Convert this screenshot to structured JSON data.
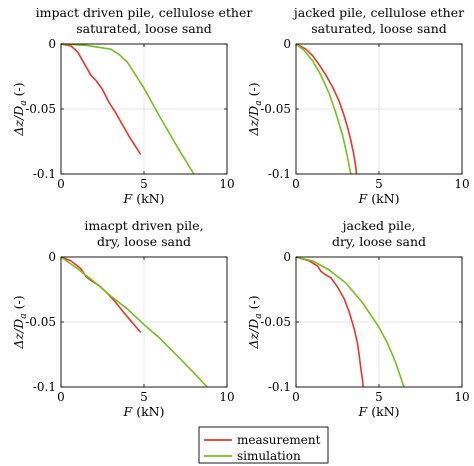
{
  "legend": {
    "entries": [
      {
        "label": "measurement",
        "color": "#e8352a"
      },
      {
        "label": "simulation",
        "color": "#72c21c"
      }
    ]
  },
  "chart_data": [
    {
      "type": "line",
      "title_lines": [
        "impact driven pile, cellulose ether",
        "saturated, loose sand"
      ],
      "xlabel": {
        "var": "F",
        "unit": " (kN)"
      },
      "ylabel": {
        "main": "Δz/D",
        "sub": "a",
        "unit": " (-)"
      },
      "xlim": [
        0,
        10
      ],
      "ylim": [
        -0.1,
        0
      ],
      "xticks": [
        0,
        5,
        10
      ],
      "yticks": [
        0,
        -0.05,
        -0.1
      ],
      "xtick_labels": [
        "0",
        "5",
        "10"
      ],
      "ytick_labels": [
        "0",
        "-0.05",
        "-0.1"
      ],
      "grid": true,
      "series": [
        {
          "name": "measurement",
          "color": "#e8352a",
          "x": [
            0,
            0.6,
            1.0,
            1.4,
            1.8,
            2.1,
            2.5,
            2.9,
            3.3,
            3.7,
            4.1,
            4.5,
            4.8
          ],
          "y": [
            0,
            -0.0015,
            -0.006,
            -0.015,
            -0.024,
            -0.028,
            -0.035,
            -0.045,
            -0.053,
            -0.062,
            -0.071,
            -0.079,
            -0.085
          ]
        },
        {
          "name": "simulation",
          "color": "#72c21c",
          "x": [
            0,
            1.5,
            3.0,
            3.5,
            4.0,
            5.0,
            6.0,
            7.0,
            8.0
          ],
          "y": [
            0,
            -0.001,
            -0.004,
            -0.008,
            -0.014,
            -0.034,
            -0.057,
            -0.079,
            -0.1
          ]
        }
      ]
    },
    {
      "type": "line",
      "title_lines": [
        "jacked pile, cellulose ether",
        "saturated, loose sand"
      ],
      "xlabel": {
        "var": "F",
        "unit": " (kN)"
      },
      "ylabel": {
        "main": "Δz/D",
        "sub": "a",
        "unit": " (-)"
      },
      "xlim": [
        0,
        10
      ],
      "ylim": [
        -0.1,
        0
      ],
      "xticks": [
        0,
        5,
        10
      ],
      "yticks": [
        0,
        -0.05,
        -0.1
      ],
      "xtick_labels": [
        "0",
        "5",
        "10"
      ],
      "ytick_labels": [
        "0",
        "-0.05",
        "-0.1"
      ],
      "grid": true,
      "series": [
        {
          "name": "measurement",
          "color": "#e8352a",
          "x": [
            0,
            0.6,
            1.0,
            1.4,
            1.8,
            2.2,
            2.6,
            2.9,
            3.1,
            3.3,
            3.45,
            3.55,
            3.6,
            3.65
          ],
          "y": [
            0,
            -0.004,
            -0.009,
            -0.016,
            -0.024,
            -0.033,
            -0.044,
            -0.055,
            -0.064,
            -0.074,
            -0.083,
            -0.09,
            -0.095,
            -0.1
          ]
        },
        {
          "name": "simulation",
          "color": "#72c21c",
          "x": [
            0,
            0.5,
            1.0,
            1.5,
            2.0,
            2.4,
            2.8,
            3.1,
            3.3
          ],
          "y": [
            0,
            -0.005,
            -0.013,
            -0.024,
            -0.038,
            -0.053,
            -0.07,
            -0.087,
            -0.1
          ]
        }
      ]
    },
    {
      "type": "line",
      "title_lines": [
        "imacpt driven pile,",
        "dry, loose sand"
      ],
      "xlabel": {
        "var": "F",
        "unit": " (kN)"
      },
      "ylabel": {
        "main": "Δz/D",
        "sub": "a",
        "unit": " (-)"
      },
      "xlim": [
        0,
        10
      ],
      "ylim": [
        -0.1,
        0
      ],
      "xticks": [
        0,
        5,
        10
      ],
      "yticks": [
        0,
        -0.05,
        -0.1
      ],
      "xtick_labels": [
        "0",
        "5",
        "10"
      ],
      "ytick_labels": [
        "0",
        "-0.05",
        "-0.1"
      ],
      "grid": true,
      "series": [
        {
          "name": "measurement",
          "color": "#e8352a",
          "x": [
            0,
            0.6,
            1.2,
            1.5,
            1.8,
            2.3,
            2.8,
            3.3,
            3.8,
            4.2,
            4.6,
            4.8
          ],
          "y": [
            0,
            -0.003,
            -0.009,
            -0.015,
            -0.018,
            -0.022,
            -0.028,
            -0.035,
            -0.043,
            -0.049,
            -0.055,
            -0.058
          ]
        },
        {
          "name": "simulation",
          "color": "#72c21c",
          "x": [
            0,
            1.0,
            2.0,
            3.0,
            4.0,
            5.0,
            6.0,
            7.0,
            8.0,
            8.8
          ],
          "y": [
            0,
            -0.009,
            -0.019,
            -0.03,
            -0.04,
            -0.052,
            -0.063,
            -0.076,
            -0.089,
            -0.1
          ]
        }
      ]
    },
    {
      "type": "line",
      "title_lines": [
        "jacked pile,",
        "dry, loose sand"
      ],
      "xlabel": {
        "var": "F",
        "unit": " (kN)"
      },
      "ylabel": {
        "main": "Δz/D",
        "sub": "a",
        "unit": " (-)"
      },
      "xlim": [
        0,
        10
      ],
      "ylim": [
        -0.1,
        0
      ],
      "xticks": [
        0,
        5,
        10
      ],
      "yticks": [
        0,
        -0.05,
        -0.1
      ],
      "xtick_labels": [
        "0",
        "5",
        "10"
      ],
      "ytick_labels": [
        "0",
        "-0.05",
        "-0.1"
      ],
      "grid": true,
      "series": [
        {
          "name": "measurement",
          "color": "#e8352a",
          "x": [
            0,
            0.8,
            1.3,
            1.5,
            1.7,
            2.1,
            2.5,
            2.9,
            3.2,
            3.5,
            3.7,
            3.8,
            3.9,
            4.0,
            4.05
          ],
          "y": [
            0,
            -0.003,
            -0.007,
            -0.011,
            -0.013,
            -0.016,
            -0.023,
            -0.032,
            -0.042,
            -0.055,
            -0.066,
            -0.075,
            -0.085,
            -0.094,
            -0.1
          ]
        },
        {
          "name": "simulation",
          "color": "#72c21c",
          "x": [
            0,
            1.0,
            2.0,
            3.0,
            4.0,
            5.0,
            5.5,
            6.0,
            6.5
          ],
          "y": [
            0,
            -0.003,
            -0.01,
            -0.02,
            -0.035,
            -0.054,
            -0.066,
            -0.081,
            -0.1
          ]
        }
      ]
    }
  ]
}
